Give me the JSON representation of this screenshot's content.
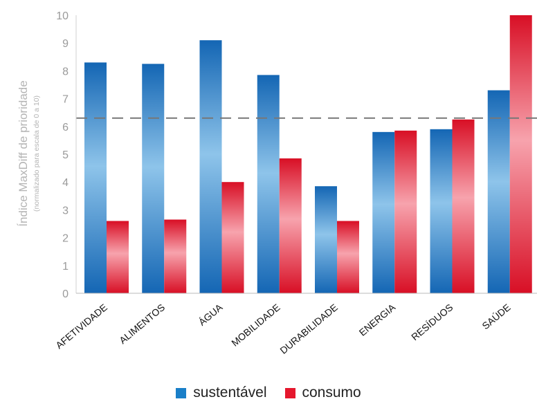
{
  "chart_data": {
    "type": "bar",
    "title": "",
    "ylabel": "Índice MaxDiff de prioridade",
    "ylabel_sub": "(normalizado para escala de 0 a 10)",
    "xlabel": "",
    "ylim": [
      0,
      10
    ],
    "yticks": [
      "0",
      "1",
      "2",
      "3",
      "4",
      "5",
      "6",
      "7",
      "8",
      "9",
      "10"
    ],
    "categories": [
      "AFETIVIDADE",
      "ALIMENTOS",
      "ÁGUA",
      "MOBILIDADE",
      "DURABILIDADE",
      "ENERGIA",
      "RESÍDUOS",
      "SAÚDE"
    ],
    "series": [
      {
        "name": "sustentável",
        "color": "#1a7fc8",
        "values": [
          8.3,
          8.25,
          9.1,
          7.85,
          3.85,
          5.8,
          5.9,
          7.3
        ]
      },
      {
        "name": "consumo",
        "color": "#e5172d",
        "values": [
          2.6,
          2.65,
          4.0,
          4.85,
          2.6,
          5.85,
          6.25,
          10.0
        ]
      }
    ],
    "reference_line": {
      "value": 6.3,
      "style": "dashed",
      "color": "#777777"
    },
    "grid": false,
    "legend": "bottom-center"
  }
}
